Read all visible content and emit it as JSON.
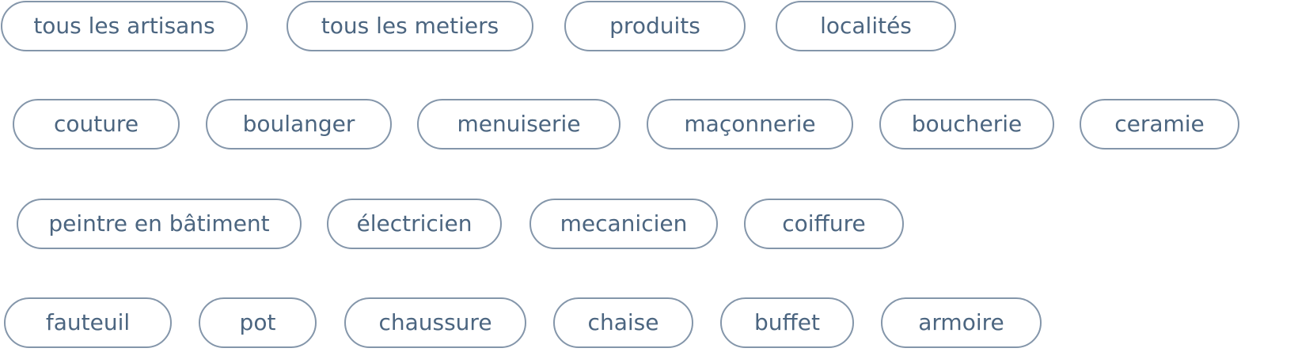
{
  "colors": {
    "chip_text": "#4b6580",
    "chip_border": "#8496aa",
    "background": "#ffffff"
  },
  "filters": {
    "main": [
      {
        "label": "tous les artisans"
      },
      {
        "label": "tous les metiers"
      },
      {
        "label": "produits"
      },
      {
        "label": "localités"
      }
    ],
    "metiers": [
      {
        "label": "couture"
      },
      {
        "label": "boulanger"
      },
      {
        "label": "menuiserie"
      },
      {
        "label": "maçonnerie"
      },
      {
        "label": "boucherie"
      },
      {
        "label": "ceramie"
      }
    ],
    "metiers_more": [
      {
        "label": "peintre en bâtiment"
      },
      {
        "label": "électricien"
      },
      {
        "label": "mecanicien"
      },
      {
        "label": "coiffure"
      }
    ],
    "produits": [
      {
        "label": "fauteuil"
      },
      {
        "label": "pot"
      },
      {
        "label": "chaussure"
      },
      {
        "label": "chaise"
      },
      {
        "label": "buffet"
      },
      {
        "label": "armoire"
      }
    ]
  }
}
